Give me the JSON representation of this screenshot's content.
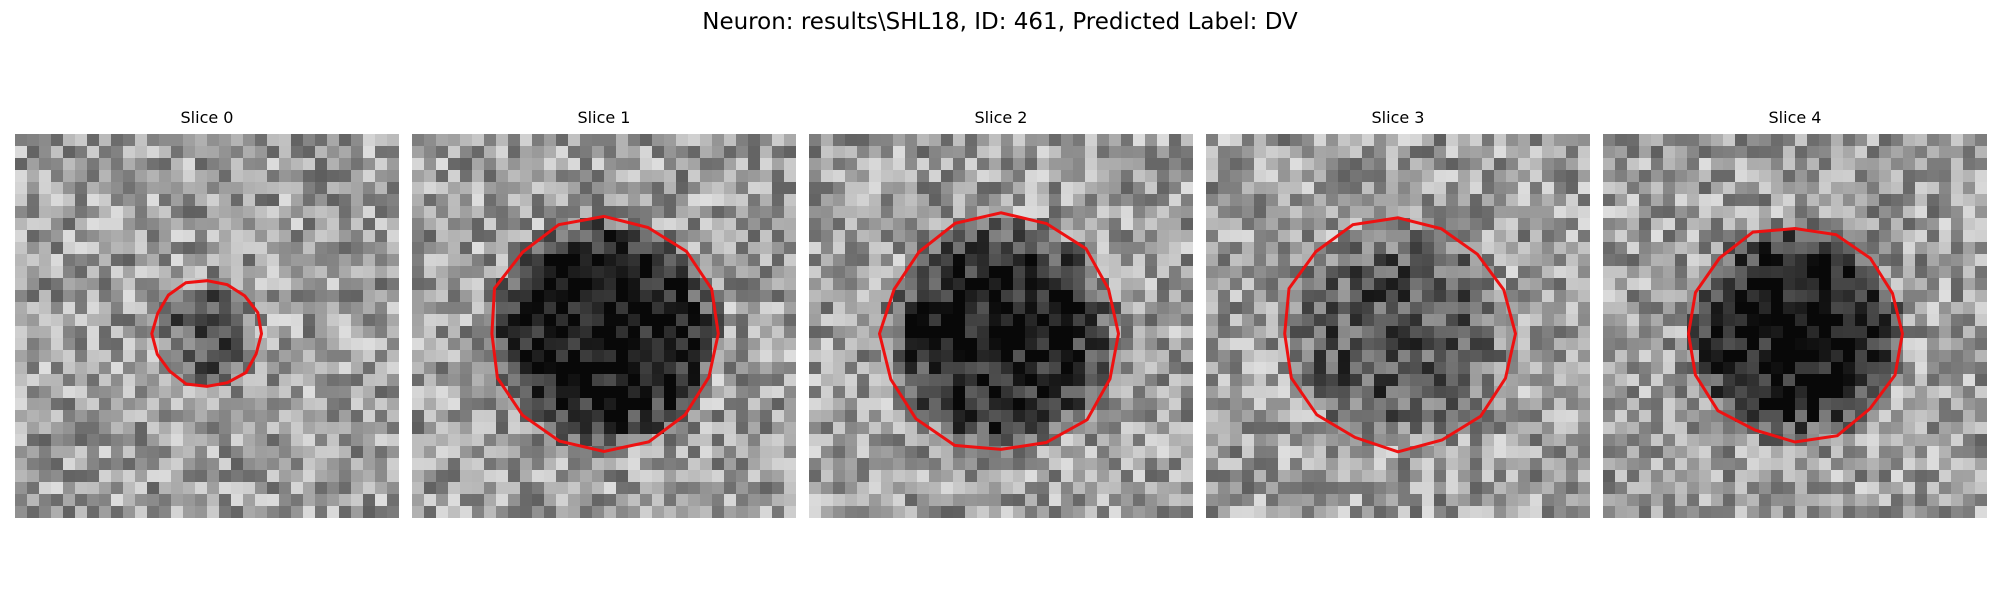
{
  "figure": {
    "title": "Neuron: results\\SHL18, ID: 461, Predicted Label: DV",
    "contour_color": "#ee1111"
  },
  "slices": [
    {
      "title": "Slice 0",
      "cell_radius": 0.14,
      "dark_strength": 0.28,
      "contour_radius": 0.14,
      "seed": 11
    },
    {
      "title": "Slice 1",
      "cell_radius": 0.32,
      "dark_strength": 0.58,
      "contour_radius": 0.3,
      "seed": 23
    },
    {
      "title": "Slice 2",
      "cell_radius": 0.32,
      "dark_strength": 0.52,
      "contour_radius": 0.31,
      "seed": 37
    },
    {
      "title": "Slice 3",
      "cell_radius": 0.3,
      "dark_strength": 0.3,
      "contour_radius": 0.3,
      "seed": 41
    },
    {
      "title": "Slice 4",
      "cell_radius": 0.3,
      "dark_strength": 0.55,
      "contour_radius": 0.28,
      "seed": 53
    }
  ]
}
